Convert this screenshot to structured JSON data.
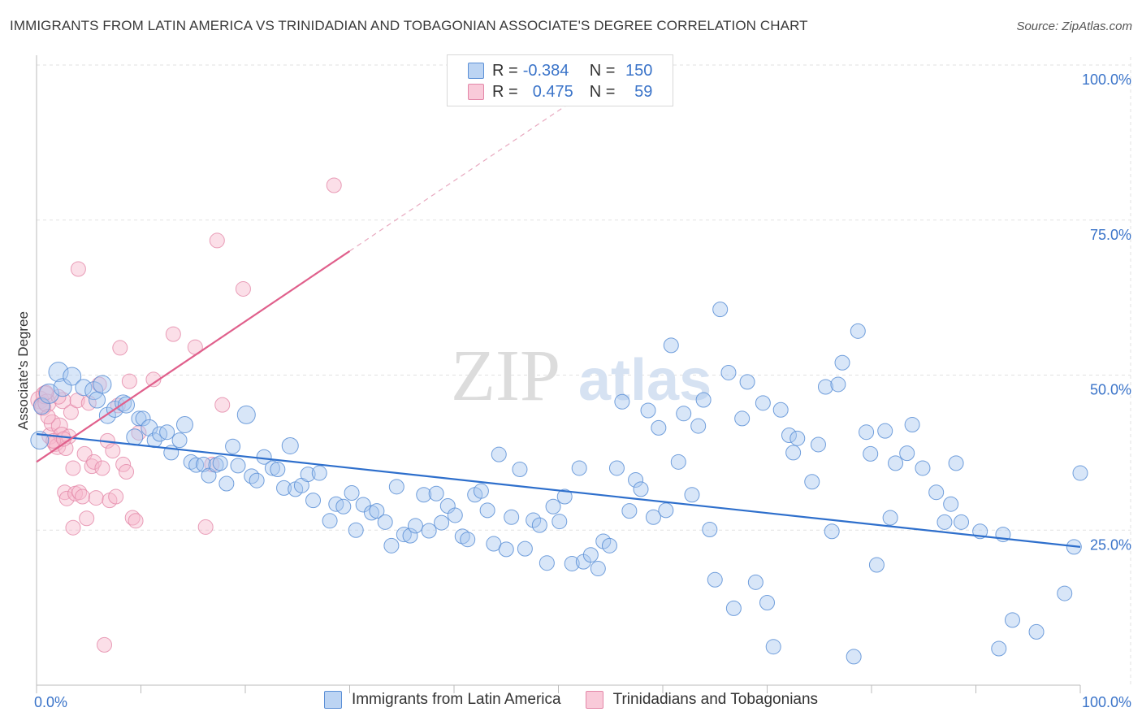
{
  "header": {
    "title": "IMMIGRANTS FROM LATIN AMERICA VS TRINIDADIAN AND TOBAGONIAN ASSOCIATE'S DEGREE CORRELATION CHART",
    "source": "Source: ZipAtlas.com"
  },
  "watermark": {
    "zip": "ZIP",
    "atlas": "atlas"
  },
  "legend": {
    "r_label": "R =",
    "n_label": "N =",
    "series1": {
      "r": "-0.384",
      "n": "150"
    },
    "series2": {
      "r": "0.475",
      "n": "59"
    }
  },
  "bottom_legend": {
    "series1": "Immigrants from Latin America",
    "series2": "Trinidadians and Tobagonians"
  },
  "colors": {
    "blue_fill": "#a9c8f0",
    "blue_stroke": "#5b8fd6",
    "blue_line": "#2e6fcc",
    "pink_fill": "#f6b9cd",
    "pink_stroke": "#e387a8",
    "pink_line": "#e0608c",
    "tick_label": "#3b74c9"
  },
  "chart_data": {
    "type": "scatter",
    "title": "IMMIGRANTS FROM LATIN AMERICA VS TRINIDADIAN AND TOBAGONIAN ASSOCIATE'S DEGREE CORRELATION CHART",
    "xlabel": "",
    "ylabel": "Associate's Degree",
    "xlim": [
      0,
      100
    ],
    "ylim": [
      0,
      100
    ],
    "x_tick_labels": [
      "0.0%",
      "100.0%"
    ],
    "y_ticks": [
      25,
      50,
      75,
      100
    ],
    "y_tick_labels": [
      "25.0%",
      "50.0%",
      "75.0%",
      "100.0%"
    ],
    "grid": true,
    "legend_position": "top-center",
    "series": [
      {
        "name": "Immigrants from Latin America",
        "color": "#5b8fd6",
        "trend": {
          "x": [
            0,
            100
          ],
          "y": [
            40.5,
            22.3
          ],
          "style": "solid"
        },
        "points": [
          [
            0.3,
            39.5,
            11
          ],
          [
            0.5,
            45,
            10
          ],
          [
            1.2,
            47,
            12
          ],
          [
            2.1,
            50.5,
            12
          ],
          [
            2.5,
            48,
            11
          ],
          [
            3.4,
            49.8,
            11
          ],
          [
            4.5,
            48,
            10
          ],
          [
            5.5,
            47.5,
            11
          ],
          [
            5.8,
            46,
            10
          ],
          [
            6.3,
            48.5,
            11
          ],
          [
            6.8,
            43.5,
            10
          ],
          [
            7.5,
            44.5,
            10
          ],
          [
            8.3,
            45.5,
            10
          ],
          [
            8.6,
            45.2,
            10
          ],
          [
            9.4,
            40,
            10
          ],
          [
            9.8,
            43,
            9
          ],
          [
            10.2,
            43,
            9
          ],
          [
            10.8,
            41.5,
            10
          ],
          [
            11.3,
            39.5,
            9
          ],
          [
            11.8,
            40.5,
            9
          ],
          [
            12.5,
            40.8,
            9
          ],
          [
            12.9,
            37.5,
            9
          ],
          [
            13.7,
            39.5,
            9
          ],
          [
            14.2,
            42,
            10
          ],
          [
            14.8,
            36,
            9
          ],
          [
            15.3,
            35.5,
            9
          ],
          [
            16,
            35.6,
            9
          ],
          [
            16.5,
            33.8,
            9
          ],
          [
            17.2,
            35.5,
            9
          ],
          [
            17.6,
            35.8,
            9
          ],
          [
            18.2,
            32.5,
            9
          ],
          [
            18.8,
            38.5,
            9
          ],
          [
            19.3,
            35.4,
            9
          ],
          [
            20.1,
            43.6,
            11
          ],
          [
            20.6,
            33.7,
            9
          ],
          [
            21.1,
            33,
            9
          ],
          [
            21.8,
            36.8,
            9
          ],
          [
            22.6,
            35,
            9
          ],
          [
            23.1,
            34.8,
            9
          ],
          [
            23.7,
            31.8,
            9
          ],
          [
            24.3,
            38.6,
            10
          ],
          [
            24.8,
            31.6,
            9
          ],
          [
            25.4,
            32.2,
            9
          ],
          [
            26,
            34,
            9
          ],
          [
            26.5,
            29.8,
            9
          ],
          [
            27.1,
            34.2,
            9
          ],
          [
            28.1,
            26.5,
            9
          ],
          [
            28.7,
            29.2,
            9
          ],
          [
            29.4,
            28.8,
            9
          ],
          [
            30.2,
            31,
            9
          ],
          [
            30.6,
            25,
            9
          ],
          [
            31.3,
            29.1,
            9
          ],
          [
            32.1,
            27.8,
            9
          ],
          [
            32.6,
            28.1,
            9
          ],
          [
            33.4,
            26.3,
            9
          ],
          [
            34,
            22.5,
            9
          ],
          [
            34.5,
            32,
            9
          ],
          [
            35.2,
            24.3,
            9
          ],
          [
            35.8,
            24.1,
            9
          ],
          [
            36.3,
            25.7,
            9
          ],
          [
            37.1,
            30.7,
            9
          ],
          [
            37.6,
            24.9,
            9
          ],
          [
            38.3,
            30.9,
            9
          ],
          [
            38.8,
            26.2,
            9
          ],
          [
            39.4,
            28.9,
            9
          ],
          [
            40.1,
            27.4,
            9
          ],
          [
            40.8,
            24,
            9
          ],
          [
            41.3,
            23.5,
            9
          ],
          [
            42,
            30.7,
            9
          ],
          [
            42.6,
            31.3,
            9
          ],
          [
            43.2,
            28.2,
            9
          ],
          [
            43.8,
            22.8,
            9
          ],
          [
            44.3,
            37.2,
            9
          ],
          [
            45,
            21.9,
            9
          ],
          [
            45.5,
            27.1,
            9
          ],
          [
            46.3,
            34.8,
            9
          ],
          [
            46.8,
            22,
            9
          ],
          [
            47.6,
            26.6,
            9
          ],
          [
            48.2,
            25.8,
            9
          ],
          [
            48.9,
            19.7,
            9
          ],
          [
            49.5,
            28.8,
            9
          ],
          [
            50.1,
            26.4,
            9
          ],
          [
            50.6,
            30.4,
            9
          ],
          [
            51.3,
            19.6,
            9
          ],
          [
            52,
            35,
            9
          ],
          [
            52.4,
            19.9,
            9
          ],
          [
            53.1,
            21,
            9
          ],
          [
            53.8,
            18.8,
            9
          ],
          [
            54.3,
            23.2,
            9
          ],
          [
            54.9,
            22.5,
            9
          ],
          [
            55.6,
            35,
            9
          ],
          [
            56.1,
            45.7,
            9
          ],
          [
            56.8,
            28.1,
            9
          ],
          [
            57.4,
            33.1,
            9
          ],
          [
            57.9,
            31.6,
            9
          ],
          [
            58.6,
            44.3,
            9
          ],
          [
            59.1,
            27.1,
            9
          ],
          [
            59.6,
            41.5,
            9
          ],
          [
            60.3,
            28.2,
            9
          ],
          [
            60.8,
            54.8,
            9
          ],
          [
            61.5,
            36,
            9
          ],
          [
            62,
            43.8,
            9
          ],
          [
            62.8,
            30.7,
            9
          ],
          [
            63.4,
            41.8,
            9
          ],
          [
            63.9,
            46,
            9
          ],
          [
            64.5,
            25.1,
            9
          ],
          [
            65,
            17,
            9
          ],
          [
            65.5,
            60.6,
            9
          ],
          [
            66.3,
            50.4,
            9
          ],
          [
            66.8,
            12.4,
            9
          ],
          [
            67.6,
            43,
            9
          ],
          [
            68.1,
            48.9,
            9
          ],
          [
            68.9,
            16.6,
            9
          ],
          [
            69.6,
            45.5,
            9
          ],
          [
            70,
            13.3,
            9
          ],
          [
            70.6,
            6.2,
            9
          ],
          [
            71.3,
            44.4,
            9
          ],
          [
            72.1,
            40.3,
            9
          ],
          [
            72.5,
            37.5,
            9
          ],
          [
            72.9,
            39.8,
            9
          ],
          [
            74.3,
            32.8,
            9
          ],
          [
            74.9,
            38.8,
            9
          ],
          [
            75.6,
            48.1,
            9
          ],
          [
            76.2,
            24.8,
            9
          ],
          [
            76.8,
            48.5,
            9
          ],
          [
            77.2,
            52,
            9
          ],
          [
            78.3,
            4.6,
            9
          ],
          [
            78.7,
            57.1,
            9
          ],
          [
            79.5,
            40.8,
            9
          ],
          [
            79.9,
            37.3,
            9
          ],
          [
            80.5,
            19.4,
            9
          ],
          [
            81.3,
            41,
            9
          ],
          [
            81.8,
            27,
            9
          ],
          [
            82.3,
            35.8,
            9
          ],
          [
            83.4,
            37.4,
            9
          ],
          [
            83.9,
            42,
            9
          ],
          [
            84.9,
            35,
            9
          ],
          [
            86.2,
            31.1,
            9
          ],
          [
            87,
            26.3,
            9
          ],
          [
            87.6,
            29.2,
            9
          ],
          [
            88.1,
            35.8,
            9
          ],
          [
            88.6,
            26.3,
            9
          ],
          [
            90.4,
            24.8,
            9
          ],
          [
            92.2,
            5.9,
            9
          ],
          [
            92.6,
            24.3,
            9
          ],
          [
            93.5,
            10.5,
            9
          ],
          [
            95.8,
            8.6,
            9
          ],
          [
            98.5,
            14.8,
            9
          ],
          [
            99.4,
            22.3,
            9
          ],
          [
            100,
            34.2,
            9
          ]
        ]
      },
      {
        "name": "Trinidadians and Tobagonians",
        "color": "#e387a8",
        "trend": {
          "x": [
            0,
            30
          ],
          "y": [
            36,
            70
          ],
          "extension_x": [
            30,
            52.8
          ],
          "extension_y": [
            70,
            95.8
          ],
          "style": "solid-then-dashed"
        },
        "points": [
          [
            0.3,
            46,
            11
          ],
          [
            0.5,
            45.2,
            10
          ],
          [
            0.6,
            44.8,
            10
          ],
          [
            0.8,
            46.8,
            11
          ],
          [
            1,
            45.5,
            11
          ],
          [
            1.3,
            40.2,
            10
          ],
          [
            1.5,
            42.3,
            10
          ],
          [
            1.8,
            39,
            10
          ],
          [
            2,
            38.5,
            10
          ],
          [
            2.2,
            41.8,
            10
          ],
          [
            2.4,
            40.3,
            10
          ],
          [
            2.5,
            45.9,
            10
          ],
          [
            2.7,
            31.1,
            9
          ],
          [
            2.9,
            30.1,
            9
          ],
          [
            3.1,
            40.1,
            9
          ],
          [
            3.3,
            44,
            9
          ],
          [
            3.5,
            35,
            9
          ],
          [
            3.7,
            30.9,
            9
          ],
          [
            3.9,
            45.9,
            9
          ],
          [
            4.1,
            31.1,
            9
          ],
          [
            4.4,
            30.4,
            9
          ],
          [
            4.6,
            37.3,
            9
          ],
          [
            4.8,
            26.9,
            9
          ],
          [
            5,
            45.5,
            9
          ],
          [
            5.3,
            35.3,
            9
          ],
          [
            5.5,
            36,
            9
          ],
          [
            5.7,
            30.2,
            9
          ],
          [
            6,
            48.5,
            9
          ],
          [
            6.3,
            35,
            9
          ],
          [
            6.5,
            6.5,
            9
          ],
          [
            6.8,
            39.4,
            9
          ],
          [
            7,
            29.8,
            9
          ],
          [
            7.3,
            37.8,
            9
          ],
          [
            7.6,
            30.4,
            9
          ],
          [
            7.8,
            45.1,
            9
          ],
          [
            8,
            54.4,
            9
          ],
          [
            8.3,
            35.6,
            9
          ],
          [
            8.6,
            34.4,
            9
          ],
          [
            8.9,
            49,
            9
          ],
          [
            9.2,
            27,
            9
          ],
          [
            9.5,
            26.5,
            9
          ],
          [
            9.8,
            40.7,
            9
          ],
          [
            3.5,
            25.4,
            9
          ],
          [
            4,
            67.1,
            9
          ],
          [
            2.8,
            38.2,
            9
          ],
          [
            1.6,
            39.4,
            9
          ],
          [
            13.1,
            56.6,
            9
          ],
          [
            15.2,
            54.5,
            9
          ],
          [
            16.2,
            25.5,
            9
          ],
          [
            16.8,
            35.6,
            9
          ],
          [
            17.8,
            45.2,
            9
          ],
          [
            17.3,
            71.7,
            9
          ],
          [
            19.8,
            63.9,
            9
          ],
          [
            11.2,
            49.3,
            9
          ],
          [
            2.1,
            46.5,
            9
          ],
          [
            0.9,
            47.2,
            9
          ],
          [
            1.1,
            43.3,
            9
          ],
          [
            2.6,
            39.7,
            9
          ],
          [
            28.5,
            80.6,
            9
          ]
        ]
      }
    ]
  }
}
